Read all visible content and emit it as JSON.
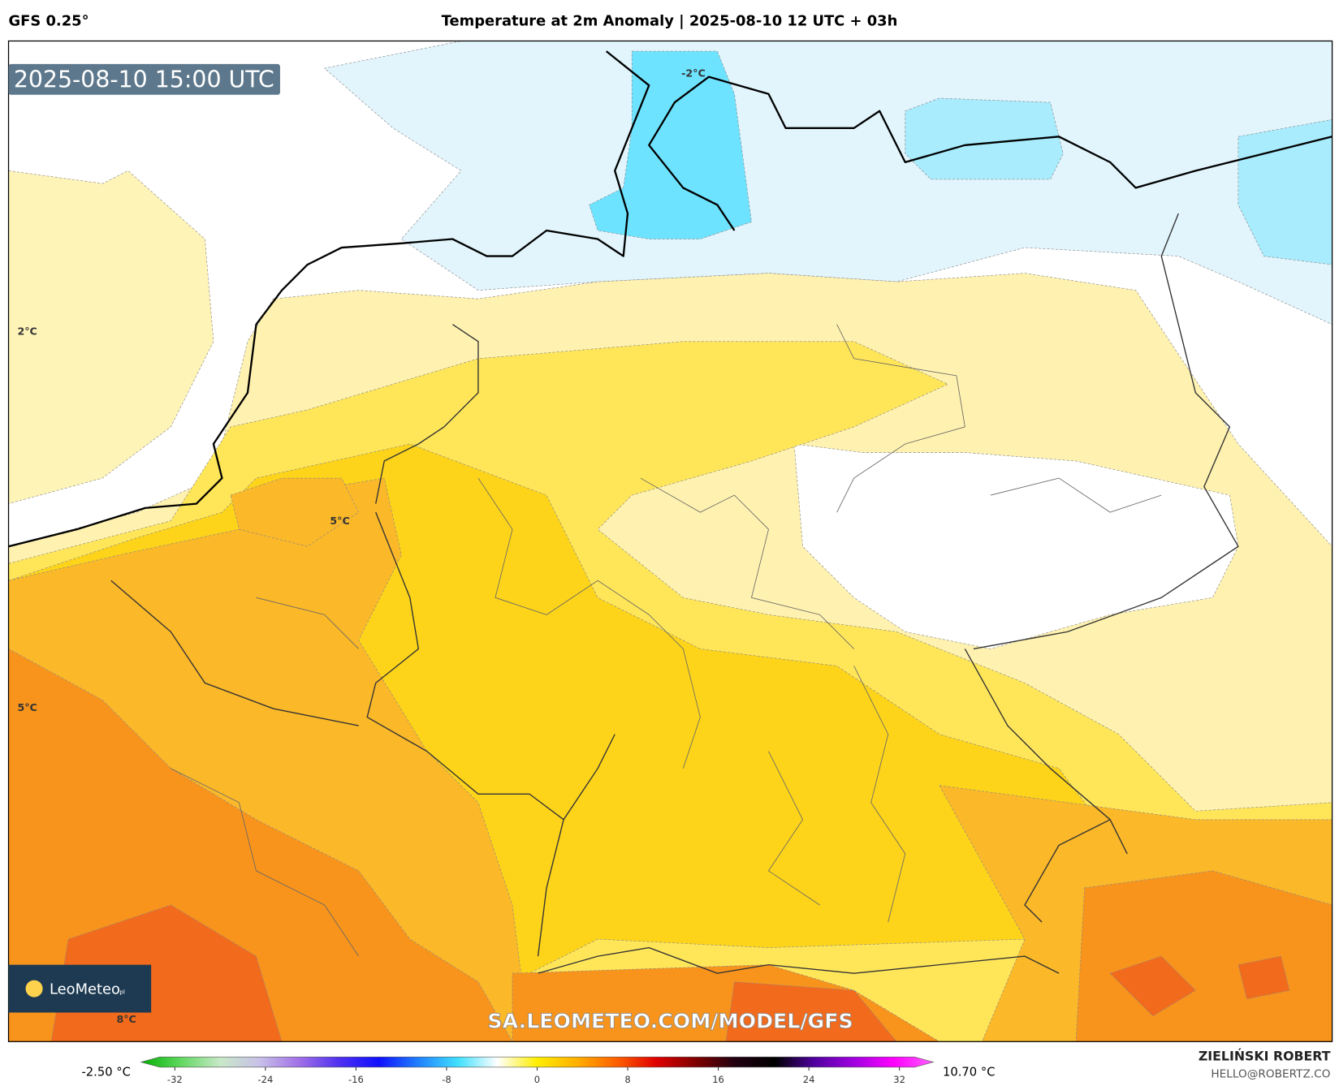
{
  "header": {
    "model": "GFS 0.25°",
    "title": "Temperature at 2m Anomaly | 2025-08-10 12 UTC + 03h"
  },
  "map": {
    "valid_time": "2025-08-10 15:00 UTC",
    "contour_labels": [
      "-2°C",
      "2°C",
      "5°C",
      "5°C",
      "8°C"
    ],
    "logo": "LeoMeteo",
    "logo_suffix": "pl",
    "watermark": "SA.LEOMETEO.COM/MODEL/GFS"
  },
  "colorbar": {
    "min_label": "-2.50 °C",
    "max_label": "10.70 °C",
    "lim": [
      -35,
      35
    ],
    "ticks": [
      -32,
      -24,
      -16,
      -8,
      0,
      8,
      16,
      24,
      32
    ],
    "colors": [
      "#00b000",
      "#60d860",
      "#c8e8c8",
      "#c8c0e8",
      "#a070e8",
      "#5030f0",
      "#1010ff",
      "#2080ff",
      "#40e0ff",
      "#ffffff",
      "#ffee00",
      "#ffb000",
      "#ff6000",
      "#e00000",
      "#800000",
      "#200010",
      "#000000",
      "#5000a0",
      "#a000e0",
      "#ff00ff",
      "#ff60ff"
    ]
  },
  "footer": {
    "author": "ZIELIŃSKI ROBERT",
    "contact": "HELLO@ROBERTZ.CO"
  }
}
